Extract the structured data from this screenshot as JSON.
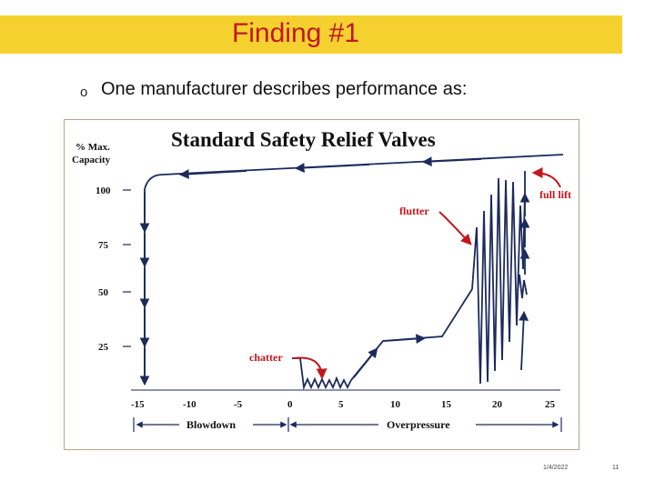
{
  "slide": {
    "title": "Finding #1",
    "bullet_marker": "o",
    "bullet_text": "One manufacturer describes performance as:",
    "footer_date": "1/4/2022",
    "footer_page": "11",
    "colors": {
      "title_bar": "#f5d130",
      "title_text": "#c4161c",
      "annotation": "#c4161c",
      "curve": "#1c2a5c"
    }
  },
  "chart_data": {
    "type": "line",
    "title": "Standard Safety Relief Valves",
    "ylabel_line1": "% Max.",
    "ylabel_line2": "Capacity",
    "y_ticks": [
      "100",
      "75",
      "50",
      "25"
    ],
    "x_ticks": [
      "-15",
      "-10",
      "-5",
      "0",
      "5",
      "10",
      "15",
      "20",
      "25"
    ],
    "xlim": [
      -15,
      25
    ],
    "ylim": [
      0,
      110
    ],
    "blowdown_label": "Blowdown",
    "overpressure_label": "Overpressure",
    "annotations": {
      "chatter": "chatter",
      "flutter": "flutter",
      "full_lift": "full lift"
    }
  }
}
